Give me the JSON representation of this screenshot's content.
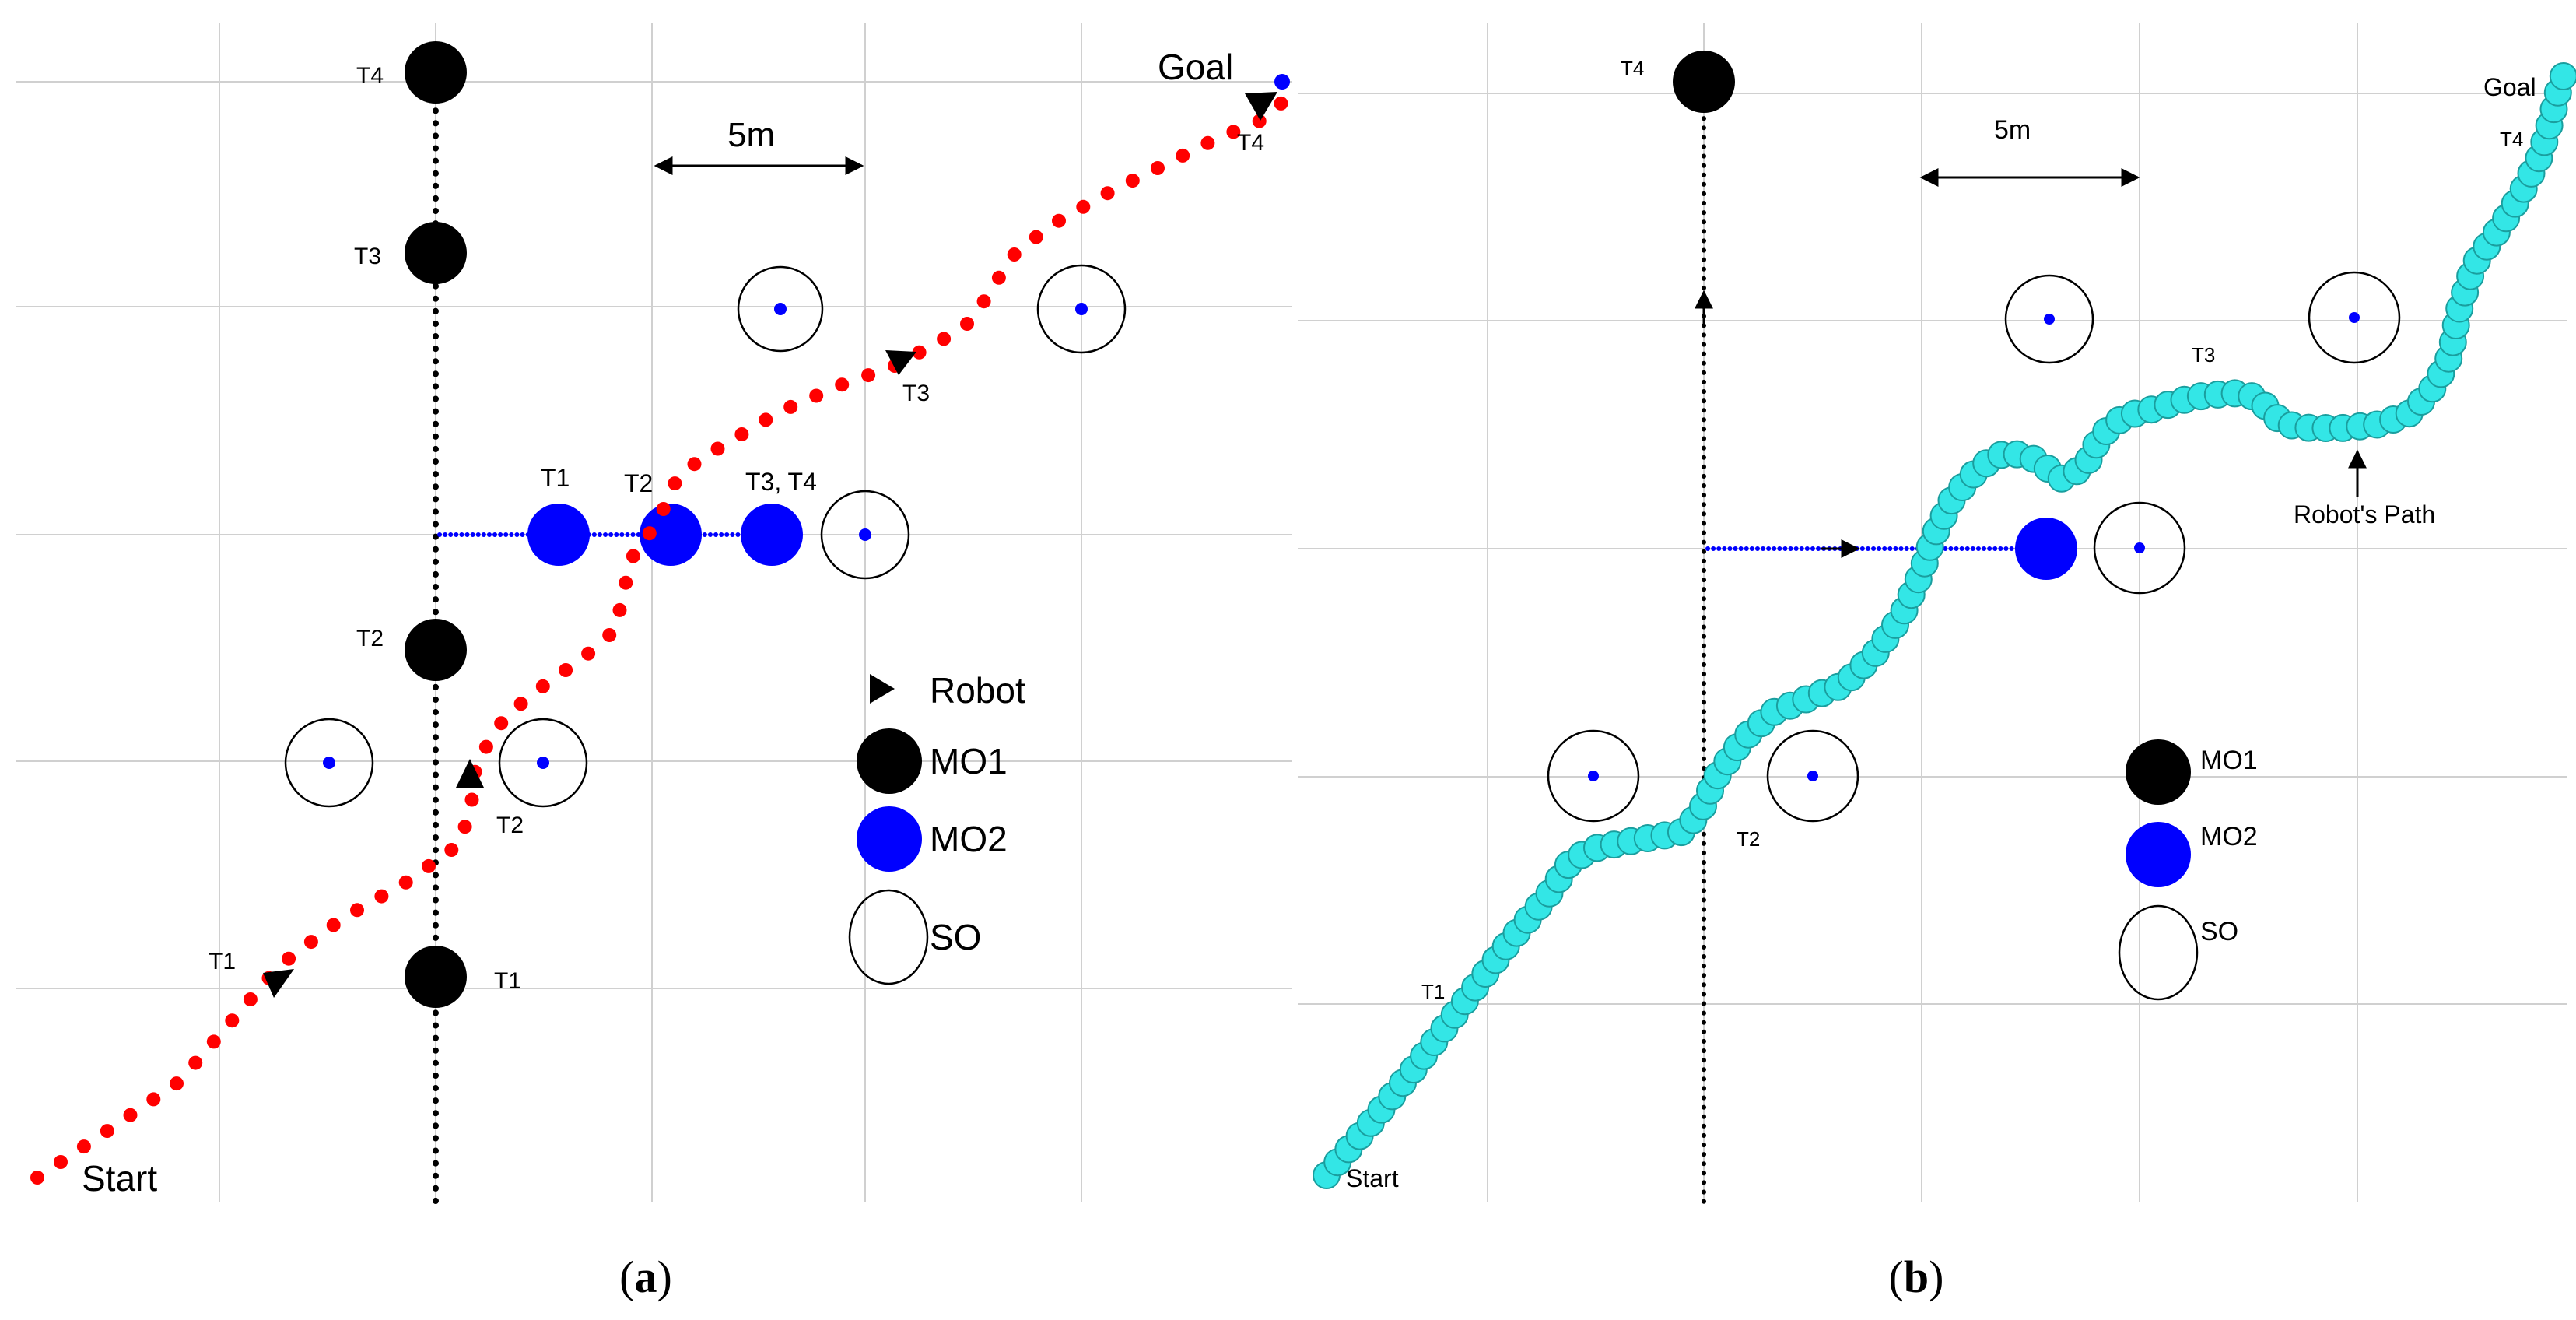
{
  "panels": {
    "a": {
      "caption_open": "(",
      "caption_letter": "a",
      "caption_close": ")",
      "start_label": "Start",
      "goal_label": "Goal",
      "scale_label": "5m",
      "legend": {
        "robot": "Robot",
        "mo1": "MO1",
        "mo2": "MO2",
        "so": "SO"
      },
      "mo1_labels": {
        "t1": "T1",
        "t2": "T2",
        "t3": "T3",
        "t4": "T4"
      },
      "mo2_labels": {
        "t1": "T1",
        "t2": "T2",
        "t34": "T3, T4"
      },
      "robot_labels": {
        "t1": "T1",
        "t2": "T2",
        "t3": "T3",
        "t4": "T4"
      }
    },
    "b": {
      "caption_open": "(",
      "caption_letter": "b",
      "caption_close": ")",
      "start_label": "Start",
      "goal_label": "Goal",
      "scale_label": "5m",
      "legend": {
        "mo1": "MO1",
        "mo2": "MO2",
        "so": "SO"
      },
      "mo1_labels": {
        "t4": "T4"
      },
      "path_labels": {
        "t1": "T1",
        "t2": "T2",
        "t3": "T3",
        "t4": "T4"
      },
      "path_annotation": "Robot's Path"
    }
  },
  "colors": {
    "robot_path_a": "#ff0000",
    "robot_path_b": "#33e6e6",
    "mo1": "#000000",
    "mo2": "#0000ff",
    "grid": "#d0d0d0"
  },
  "icons": {
    "robot": "triangle-marker",
    "mo1": "black-disc",
    "mo2": "blue-disc",
    "so": "hollow-circle"
  }
}
